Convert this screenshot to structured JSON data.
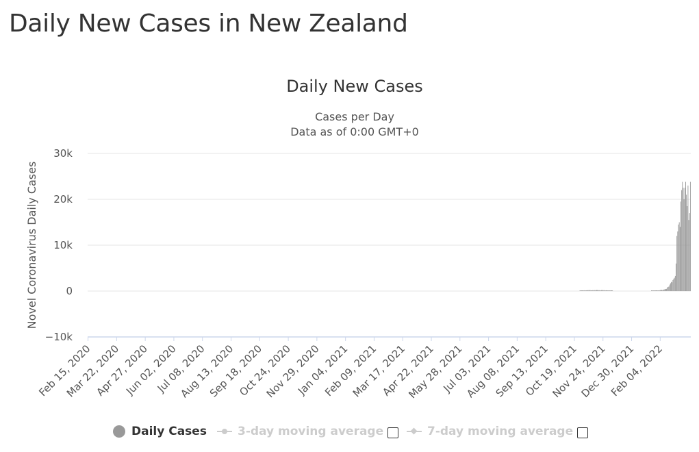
{
  "page": {
    "title": "Daily New Cases in New Zealand"
  },
  "legend": {
    "items": [
      {
        "label": "Daily Cases",
        "color": "#999999",
        "active": true
      },
      {
        "label": "3-day moving average",
        "color": "#cccccc",
        "active": false
      },
      {
        "label": "7-day moving average",
        "color": "#cccccc",
        "active": false
      }
    ]
  },
  "chart_data": {
    "type": "bar",
    "title": "Daily New Cases",
    "subtitle_lines": [
      "Cases per Day",
      "Data as of 0:00 GMT+0"
    ],
    "xlabel": "",
    "ylabel": "Novel Coronavirus Daily Cases",
    "ylim": [
      -10000,
      30000
    ],
    "y_ticks": [
      {
        "value": 30000,
        "label": "30k"
      },
      {
        "value": 20000,
        "label": "20k"
      },
      {
        "value": 10000,
        "label": "10k"
      },
      {
        "value": 0,
        "label": "0"
      },
      {
        "value": -10000,
        "label": "−10k"
      }
    ],
    "x_range": [
      "2020-02-15",
      "2022-03-14"
    ],
    "x_tick_labels": [
      "Feb 15, 2020",
      "Mar 22, 2020",
      "Apr 27, 2020",
      "Jun 02, 2020",
      "Jul 08, 2020",
      "Aug 13, 2020",
      "Sep 18, 2020",
      "Oct 24, 2020",
      "Nov 29, 2020",
      "Jan 04, 2021",
      "Feb 09, 2021",
      "Mar 17, 2021",
      "Apr 22, 2021",
      "May 28, 2021",
      "Jul 03, 2021",
      "Aug 08, 2021",
      "Sep 13, 2021",
      "Oct 19, 2021",
      "Nov 24, 2021",
      "Dec 30, 2021",
      "Feb 04, 2022"
    ],
    "grid": true,
    "legend_position": "bottom",
    "series": [
      {
        "name": "Daily Cases",
        "color": "#999999",
        "points": [
          [
            "2021-10-26",
            80
          ],
          [
            "2021-10-27",
            80
          ],
          [
            "2021-10-28",
            130
          ],
          [
            "2021-10-29",
            100
          ],
          [
            "2021-10-30",
            160
          ],
          [
            "2021-10-31",
            140
          ],
          [
            "2021-11-01",
            160
          ],
          [
            "2021-11-02",
            120
          ],
          [
            "2021-11-03",
            100
          ],
          [
            "2021-11-04",
            200
          ],
          [
            "2021-11-05",
            160
          ],
          [
            "2021-11-06",
            190
          ],
          [
            "2021-11-07",
            210
          ],
          [
            "2021-11-08",
            190
          ],
          [
            "2021-11-09",
            120
          ],
          [
            "2021-11-10",
            150
          ],
          [
            "2021-11-11",
            180
          ],
          [
            "2021-11-12",
            170
          ],
          [
            "2021-11-13",
            200
          ],
          [
            "2021-11-14",
            180
          ],
          [
            "2021-11-15",
            190
          ],
          [
            "2021-11-16",
            220
          ],
          [
            "2021-11-17",
            220
          ],
          [
            "2021-11-18",
            170
          ],
          [
            "2021-11-19",
            200
          ],
          [
            "2021-11-20",
            170
          ],
          [
            "2021-11-21",
            140
          ],
          [
            "2021-11-22",
            200
          ],
          [
            "2021-11-23",
            210
          ],
          [
            "2021-11-24",
            180
          ],
          [
            "2021-11-25",
            170
          ],
          [
            "2021-11-26",
            180
          ],
          [
            "2021-11-27",
            150
          ],
          [
            "2021-11-28",
            140
          ],
          [
            "2021-11-29",
            170
          ],
          [
            "2021-11-30",
            140
          ],
          [
            "2021-12-01",
            120
          ],
          [
            "2021-12-02",
            90
          ],
          [
            "2021-12-03",
            110
          ],
          [
            "2021-12-04",
            80
          ],
          [
            "2021-12-05",
            90
          ],
          [
            "2021-12-06",
            100
          ],
          [
            "2022-01-24",
            50
          ],
          [
            "2022-01-25",
            60
          ],
          [
            "2022-01-26",
            80
          ],
          [
            "2022-01-27",
            100
          ],
          [
            "2022-01-28",
            70
          ],
          [
            "2022-01-29",
            90
          ],
          [
            "2022-01-30",
            100
          ],
          [
            "2022-01-31",
            110
          ],
          [
            "2022-02-01",
            150
          ],
          [
            "2022-02-02",
            140
          ],
          [
            "2022-02-03",
            160
          ],
          [
            "2022-02-04",
            210
          ],
          [
            "2022-02-05",
            240
          ],
          [
            "2022-02-06",
            250
          ],
          [
            "2022-02-07",
            190
          ],
          [
            "2022-02-08",
            300
          ],
          [
            "2022-02-09",
            350
          ],
          [
            "2022-02-10",
            400
          ],
          [
            "2022-02-11",
            450
          ],
          [
            "2022-02-12",
            480
          ],
          [
            "2022-02-13",
            800
          ],
          [
            "2022-02-14",
            900
          ],
          [
            "2022-02-15",
            1000
          ],
          [
            "2022-02-16",
            1400
          ],
          [
            "2022-02-17",
            1700
          ],
          [
            "2022-02-18",
            2000
          ],
          [
            "2022-02-19",
            1900
          ],
          [
            "2022-02-20",
            2400
          ],
          [
            "2022-02-21",
            2700
          ],
          [
            "2022-02-22",
            2900
          ],
          [
            "2022-02-23",
            3300
          ],
          [
            "2022-02-24",
            6000
          ],
          [
            "2022-02-25",
            12000
          ],
          [
            "2022-02-26",
            13000
          ],
          [
            "2022-02-27",
            14500
          ],
          [
            "2022-02-28",
            15000
          ],
          [
            "2022-03-01",
            14000
          ],
          [
            "2022-03-02",
            19500
          ],
          [
            "2022-03-03",
            22000
          ],
          [
            "2022-03-04",
            23800
          ],
          [
            "2022-03-05",
            22500
          ],
          [
            "2022-03-06",
            20000
          ],
          [
            "2022-03-07",
            22500
          ],
          [
            "2022-03-08",
            23800
          ],
          [
            "2022-03-09",
            21000
          ],
          [
            "2022-03-10",
            18500
          ],
          [
            "2022-03-11",
            23000
          ],
          [
            "2022-03-12",
            15500
          ],
          [
            "2022-03-13",
            17000
          ],
          [
            "2022-03-14",
            23800
          ]
        ]
      }
    ]
  }
}
